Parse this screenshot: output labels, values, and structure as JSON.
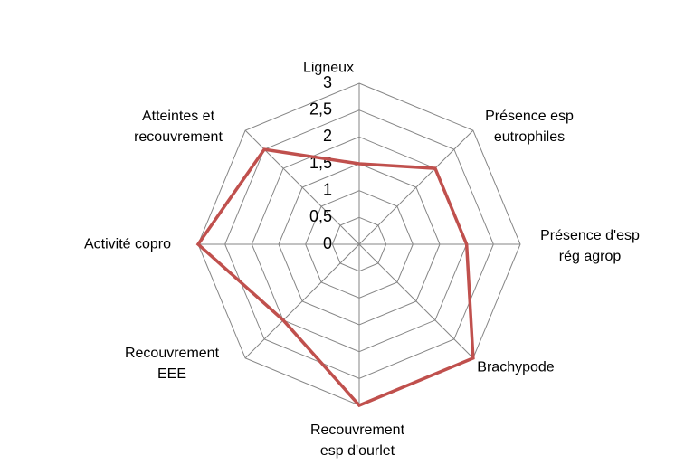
{
  "chart_data": {
    "type": "radar",
    "categories": [
      "Ligneux",
      "Présence esp eutrophiles",
      "Présence d'esp rég agrop",
      "Brachypode",
      "Recouvrement esp d'ourlet",
      "Recouvrement EEE",
      "Activité copro",
      "Atteintes et recouvrement"
    ],
    "series": [
      {
        "color": "#c0504d",
        "values": [
          1.5,
          2,
          2,
          3,
          3,
          2,
          3,
          2.5
        ]
      }
    ],
    "ylim": [
      0,
      3
    ],
    "yticks": [
      0,
      {
        "value": 0.5,
        "label": "0,5"
      },
      1,
      {
        "value": 1.5,
        "label": "1,5"
      },
      2,
      {
        "value": 2.5,
        "label": "2,5"
      },
      3
    ],
    "grid": true
  }
}
